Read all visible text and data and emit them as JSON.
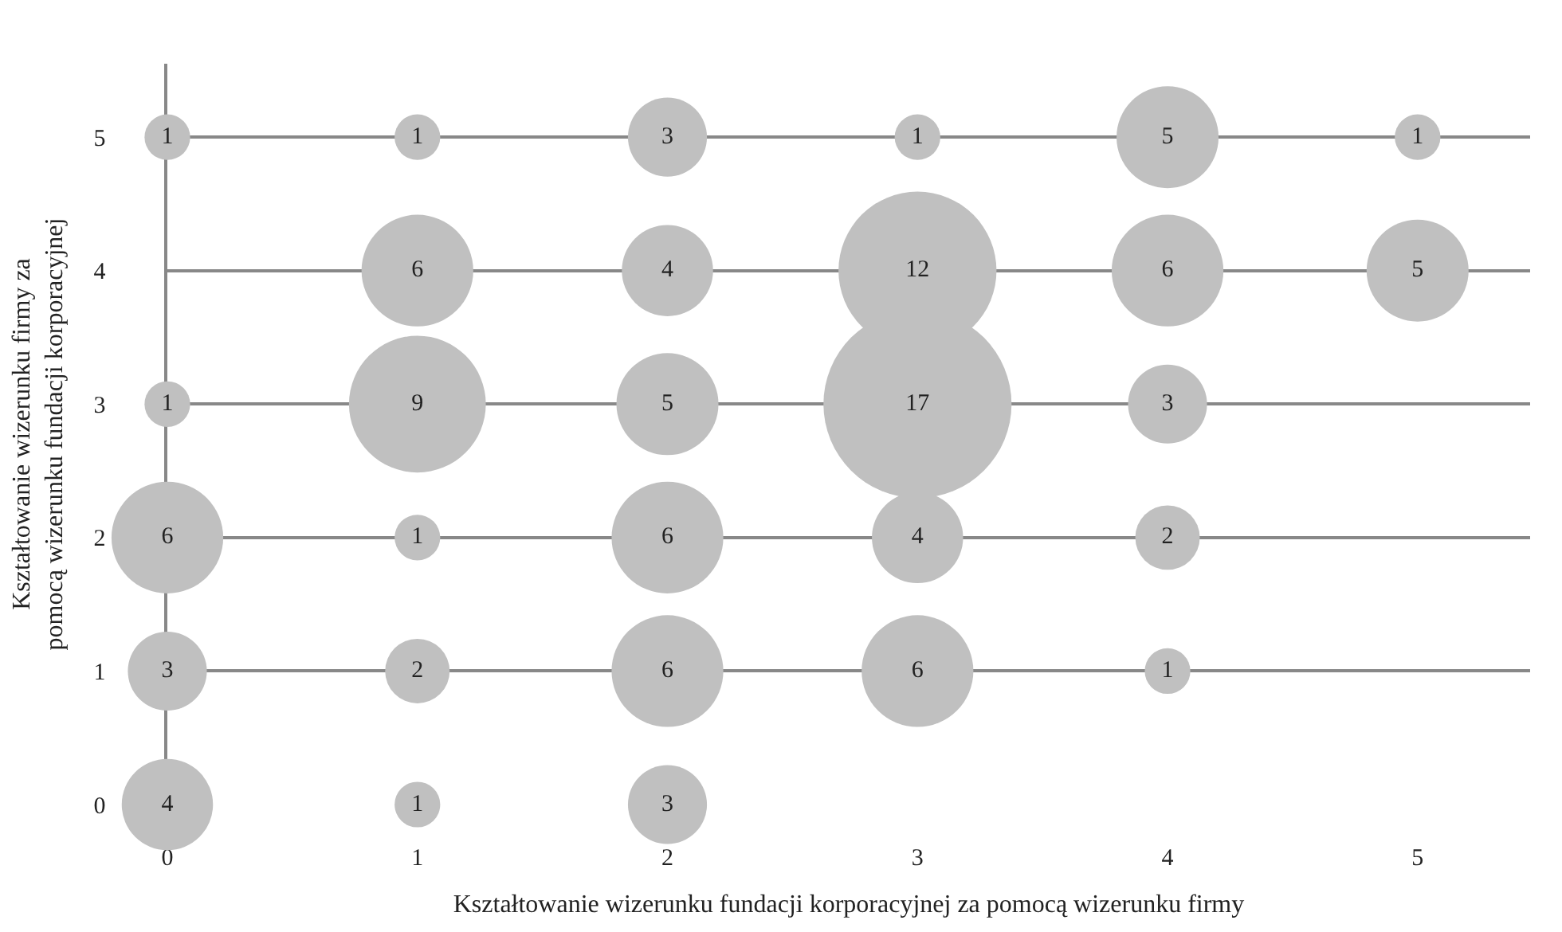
{
  "chart_data": {
    "type": "bubble",
    "xlabel": "Kształtowanie wizerunku fundacji korporacyjnej za pomocą wizerunku firmy",
    "ylabel": "Kształtowanie wizerunku firmy za pomocą wizerunku fundacji korporacyjnej",
    "x": [
      0,
      1,
      2,
      3,
      4,
      5,
      1,
      2,
      3,
      4,
      5,
      0,
      1,
      2,
      3,
      4,
      0,
      1,
      2,
      3,
      4,
      0,
      1,
      2,
      3,
      4,
      0,
      1,
      2
    ],
    "values": [
      5,
      5,
      5,
      5,
      5,
      5,
      4,
      4,
      4,
      4,
      4,
      3,
      3,
      3,
      3,
      3,
      2,
      2,
      2,
      2,
      2,
      1,
      1,
      1,
      1,
      1,
      0,
      0,
      0
    ],
    "sizes": [
      1,
      1,
      3,
      1,
      5,
      1,
      6,
      4,
      12,
      6,
      5,
      1,
      9,
      5,
      17,
      3,
      6,
      1,
      6,
      4,
      2,
      3,
      2,
      6,
      6,
      1,
      4,
      1,
      3
    ],
    "value_labels": [
      "1",
      "1",
      "3",
      "1",
      "5",
      "1",
      "6",
      "4",
      "12",
      "6",
      "5",
      "1",
      "9",
      "5",
      "17",
      "3",
      "6",
      "1",
      "6",
      "4",
      "2",
      "3",
      "2",
      "6",
      "6",
      "1",
      "4",
      "1",
      "3"
    ],
    "color": "#c0c0c0",
    "xlim": [
      0,
      5.45
    ],
    "ylim": [
      0,
      5.55
    ],
    "xticks": [
      0,
      1,
      2,
      3,
      4,
      5
    ],
    "yticks": [
      0,
      1,
      2,
      3,
      4,
      5
    ],
    "grid": "y"
  }
}
